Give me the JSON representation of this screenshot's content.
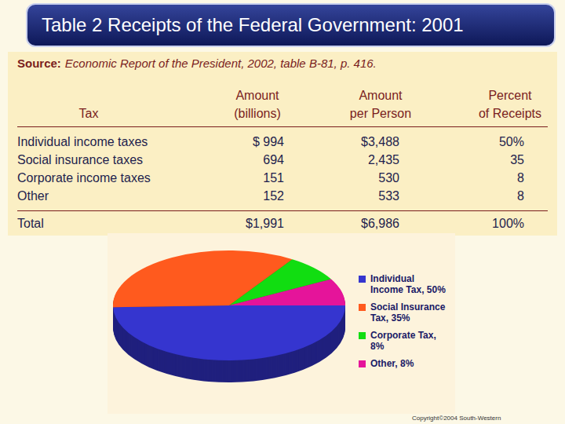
{
  "header": {
    "title": "Table 2 Receipts of the Federal Government: 2001"
  },
  "source": {
    "label": "Source:",
    "text": "Economic Report of the President, 2002, table B-81, p. 416."
  },
  "table": {
    "columns": [
      [
        "Tax"
      ],
      [
        "Amount",
        "(billions)"
      ],
      [
        "Amount",
        "per Person"
      ],
      [
        "Percent",
        "of Receipts"
      ]
    ],
    "rows": [
      [
        "Individual income taxes",
        "$ 994",
        "$3,488",
        "50%"
      ],
      [
        "Social insurance taxes",
        "694",
        "2,435",
        "35"
      ],
      [
        "Corporate income taxes",
        "151",
        "530",
        "8"
      ],
      [
        "Other",
        "152",
        "533",
        "8"
      ]
    ],
    "total": [
      "Total",
      "$1,991",
      "$6,986",
      "100%"
    ]
  },
  "chart_data": {
    "type": "pie",
    "categories": [
      "Individual Income Tax, 50%",
      "Social Insurance Tax, 35%",
      "Corporate Tax, 8%",
      "Other, 8%"
    ],
    "values": [
      50,
      35,
      8,
      8
    ],
    "colors": [
      "#3535cf",
      "#ff5a1e",
      "#11dd11",
      "#e5149a"
    ],
    "legend": "right"
  },
  "footer": {
    "copyright": "Copyright©2004 South-Western"
  }
}
